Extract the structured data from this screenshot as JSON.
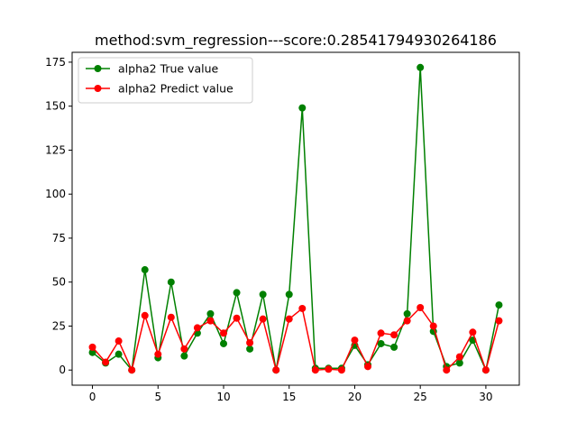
{
  "chart_data": {
    "type": "line",
    "title": "method:svm_regression---score:0.28541794930264186",
    "xlabel": "",
    "ylabel": "",
    "xlim": [
      -1.55,
      32.55
    ],
    "ylim": [
      -8.6,
      180.6
    ],
    "xticks": [
      0,
      5,
      10,
      15,
      20,
      25,
      30
    ],
    "yticks": [
      0,
      25,
      50,
      75,
      100,
      125,
      150,
      175
    ],
    "grid": false,
    "legend_position": "top-left",
    "x": [
      0,
      1,
      2,
      3,
      4,
      5,
      6,
      7,
      8,
      9,
      10,
      11,
      12,
      13,
      14,
      15,
      16,
      17,
      18,
      19,
      20,
      21,
      22,
      23,
      24,
      25,
      26,
      27,
      28,
      29,
      30,
      31
    ],
    "series": [
      {
        "name": "alpha2 True value",
        "color": "#008000",
        "values": [
          10,
          4,
          9,
          0,
          57,
          7,
          50,
          8,
          21,
          32,
          15,
          44,
          12,
          43,
          0,
          43,
          149,
          1,
          1,
          1,
          14,
          3,
          15,
          13,
          32,
          172,
          22,
          2,
          4,
          17,
          0,
          37
        ]
      },
      {
        "name": "alpha2 Predict value",
        "color": "#ff0000",
        "values": [
          13,
          4.5,
          16.5,
          0,
          31,
          9,
          30,
          12,
          24,
          28,
          21,
          29.5,
          15.5,
          29,
          0,
          29,
          35,
          0,
          0.5,
          0,
          17,
          2,
          21,
          20,
          28,
          35.5,
          25,
          0,
          7.5,
          21.5,
          0,
          28
        ]
      }
    ]
  }
}
